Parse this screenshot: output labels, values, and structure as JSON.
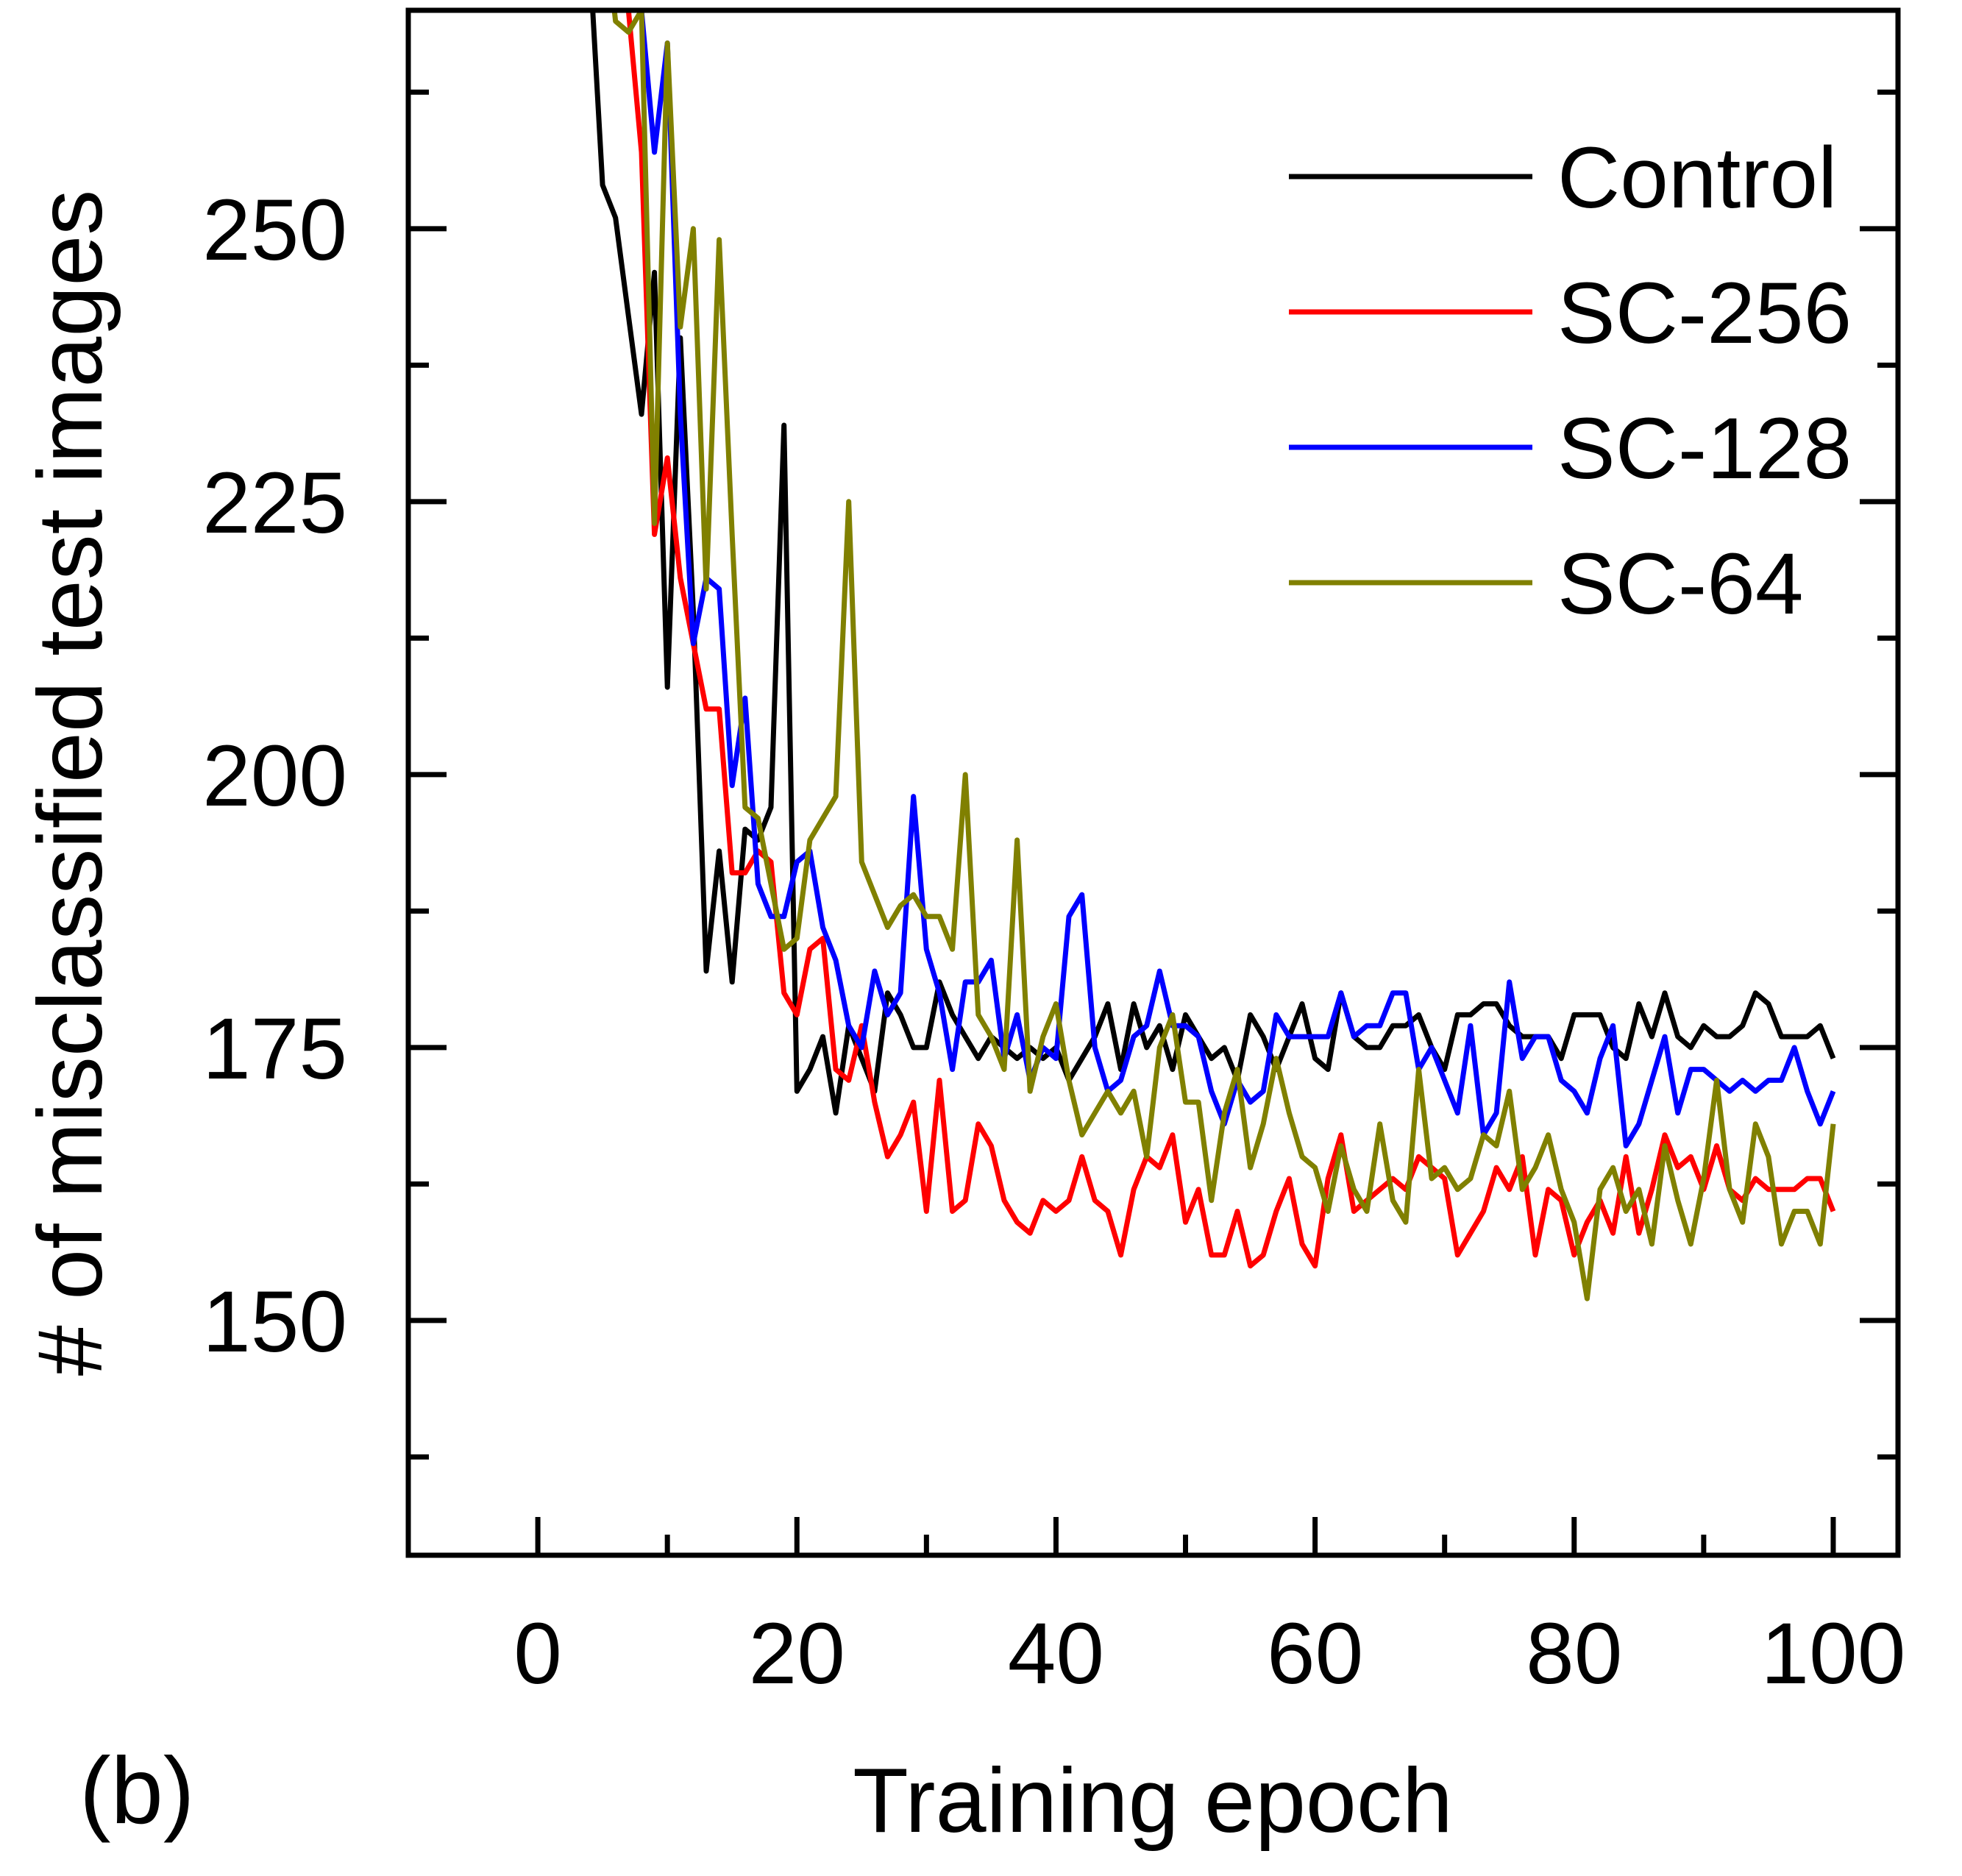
{
  "panel_label": "(b)",
  "chart_data": {
    "type": "line",
    "xlabel": "Training epoch",
    "ylabel": "# of misclassified test images",
    "xlim": [
      -10,
      105
    ],
    "ylim": [
      128.5,
      270
    ],
    "x_ticks": [
      0,
      20,
      40,
      60,
      80,
      100
    ],
    "y_ticks": [
      150,
      175,
      200,
      225,
      250
    ],
    "y_minor_ticks": [
      137.5,
      162.5,
      187.5,
      212.5,
      237.5,
      262.5
    ],
    "x_minor_ticks": [
      10,
      30,
      50,
      70,
      90
    ],
    "grid": false,
    "legend_position": "top-right",
    "series": [
      {
        "name": "Control",
        "color": "#000000",
        "x": [
          4,
          5,
          6,
          7,
          8,
          9,
          10,
          11,
          12,
          13,
          14,
          15,
          16,
          17,
          18,
          19,
          20,
          21,
          22,
          23,
          24,
          25,
          26,
          27,
          28,
          29,
          30,
          31,
          32,
          33,
          34,
          35,
          36,
          37,
          38,
          39,
          40,
          41,
          42,
          43,
          44,
          45,
          46,
          47,
          48,
          49,
          50,
          51,
          52,
          53,
          54,
          55,
          56,
          57,
          58,
          59,
          60,
          61,
          62,
          63,
          64,
          65,
          66,
          67,
          68,
          69,
          70,
          71,
          72,
          73,
          74,
          75,
          76,
          77,
          78,
          79,
          80,
          81,
          82,
          83,
          84,
          85,
          86,
          87,
          88,
          89,
          90,
          91,
          92,
          93,
          94,
          95,
          96,
          97,
          98,
          99,
          100
        ],
        "values": [
          275,
          254,
          251,
          242,
          233,
          246,
          208,
          240,
          215,
          182,
          193,
          181,
          195,
          194,
          197,
          232,
          171,
          173,
          176,
          169,
          177,
          174,
          171,
          180,
          178,
          175,
          175,
          181,
          178,
          176,
          174,
          176,
          175,
          174,
          175,
          174,
          175,
          172,
          174,
          176,
          179,
          173,
          179,
          175,
          177,
          173,
          178,
          176,
          174,
          175,
          172,
          178,
          176,
          173,
          176,
          179,
          174,
          173,
          180,
          176,
          175,
          175,
          177,
          177,
          178,
          175,
          173,
          178,
          178,
          179,
          179,
          177,
          176,
          176,
          176,
          174,
          178,
          178,
          178,
          175,
          174,
          179,
          176,
          180,
          176,
          175,
          177,
          176,
          176,
          177,
          180,
          179,
          176,
          176,
          176,
          177,
          174
        ]
      },
      {
        "name": "SC-256",
        "color": "#ff0000",
        "x": [
          6,
          7,
          8,
          9,
          10,
          11,
          12,
          13,
          14,
          15,
          16,
          17,
          18,
          19,
          20,
          21,
          22,
          23,
          24,
          25,
          26,
          27,
          28,
          29,
          30,
          31,
          32,
          33,
          34,
          35,
          36,
          37,
          38,
          39,
          40,
          41,
          42,
          43,
          44,
          45,
          46,
          47,
          48,
          49,
          50,
          51,
          52,
          53,
          54,
          55,
          56,
          57,
          58,
          59,
          60,
          61,
          62,
          63,
          64,
          65,
          66,
          67,
          68,
          69,
          70,
          71,
          72,
          73,
          74,
          75,
          76,
          77,
          78,
          79,
          80,
          81,
          82,
          83,
          84,
          85,
          86,
          87,
          88,
          89,
          90,
          91,
          92,
          93,
          94,
          95,
          96,
          97,
          98,
          99,
          100
        ],
        "values": [
          278,
          270,
          257,
          222,
          229,
          218,
          212,
          206,
          206,
          191,
          191,
          193,
          192,
          180,
          178,
          184,
          185,
          173,
          172,
          177,
          170,
          165,
          167,
          170,
          160,
          172,
          160,
          161,
          168,
          166,
          161,
          159,
          158,
          161,
          160,
          161,
          165,
          161,
          160,
          156,
          162,
          165,
          164,
          167,
          159,
          162,
          156,
          156,
          160,
          155,
          156,
          160,
          163,
          157,
          155,
          163,
          167,
          160,
          161,
          162,
          163,
          162,
          165,
          164,
          163,
          156,
          158,
          160,
          164,
          162,
          165,
          156,
          162,
          161,
          156,
          159,
          161,
          158,
          165,
          158,
          162,
          167,
          164,
          165,
          162,
          166,
          162,
          161,
          163,
          162,
          162,
          162,
          163,
          163,
          160
        ]
      },
      {
        "name": "SC-128",
        "color": "#0000ff",
        "x": [
          7,
          8,
          9,
          10,
          11,
          12,
          13,
          14,
          15,
          16,
          17,
          18,
          19,
          20,
          21,
          22,
          23,
          24,
          25,
          26,
          27,
          28,
          29,
          30,
          31,
          32,
          33,
          34,
          35,
          36,
          37,
          38,
          39,
          40,
          41,
          42,
          43,
          44,
          45,
          46,
          47,
          48,
          49,
          50,
          51,
          52,
          53,
          54,
          55,
          56,
          57,
          58,
          59,
          60,
          61,
          62,
          63,
          64,
          65,
          66,
          67,
          68,
          69,
          70,
          71,
          72,
          73,
          74,
          75,
          76,
          77,
          78,
          79,
          80,
          81,
          82,
          83,
          84,
          85,
          86,
          87,
          88,
          89,
          90,
          91,
          92,
          93,
          94,
          95,
          96,
          97,
          98,
          99,
          100
        ],
        "values": [
          278,
          270,
          257,
          267,
          233,
          212,
          218,
          217,
          199,
          207,
          190,
          187,
          187,
          192,
          193,
          186,
          183,
          177,
          175,
          182,
          178,
          180,
          198,
          184,
          180,
          173,
          181,
          181,
          183,
          174,
          178,
          172,
          175,
          174,
          187,
          189,
          175,
          171,
          172,
          176,
          177,
          182,
          177,
          177,
          176,
          171,
          168,
          172,
          170,
          171,
          178,
          176,
          176,
          176,
          176,
          180,
          176,
          177,
          177,
          180,
          180,
          173,
          175,
          172,
          169,
          177,
          167,
          169,
          181,
          174,
          176,
          176,
          172,
          171,
          169,
          174,
          177,
          166,
          168,
          172,
          176,
          169,
          173,
          173,
          172,
          171,
          172,
          171,
          172,
          172,
          175,
          171,
          168,
          171
        ]
      },
      {
        "name": "SC-64",
        "color": "#808000",
        "x": [
          5,
          6,
          7,
          8,
          9,
          10,
          11,
          12,
          13,
          14,
          15,
          16,
          17,
          18,
          19,
          20,
          21,
          22,
          23,
          24,
          25,
          26,
          27,
          28,
          29,
          30,
          31,
          32,
          33,
          34,
          35,
          36,
          37,
          38,
          39,
          40,
          41,
          42,
          43,
          44,
          45,
          46,
          47,
          48,
          49,
          50,
          51,
          52,
          53,
          54,
          55,
          56,
          57,
          58,
          59,
          60,
          61,
          62,
          63,
          64,
          65,
          66,
          67,
          68,
          69,
          70,
          71,
          72,
          73,
          74,
          75,
          76,
          77,
          78,
          79,
          80,
          81,
          82,
          83,
          84,
          85,
          86,
          87,
          88,
          89,
          90,
          91,
          92,
          93,
          94,
          95,
          96,
          97,
          98,
          99,
          100
        ],
        "values": [
          280,
          269,
          268,
          270,
          223,
          267,
          241,
          250,
          217,
          249,
          222,
          197,
          196,
          190,
          184,
          185,
          194,
          196,
          198,
          225,
          192,
          189,
          186,
          188,
          189,
          187,
          187,
          184,
          200,
          178,
          176,
          173,
          194,
          171,
          176,
          179,
          172,
          167,
          169,
          171,
          169,
          171,
          165,
          175,
          178,
          170,
          170,
          161,
          169,
          173,
          164,
          168,
          174,
          169,
          165,
          164,
          160,
          166,
          162,
          160,
          168,
          161,
          159,
          173,
          163,
          164,
          162,
          163,
          167,
          166,
          171,
          162,
          164,
          167,
          162,
          159,
          152,
          162,
          164,
          160,
          162,
          157,
          166,
          161,
          157,
          163,
          172,
          162,
          159,
          168,
          165,
          157,
          160,
          160,
          157,
          168
        ]
      }
    ]
  }
}
